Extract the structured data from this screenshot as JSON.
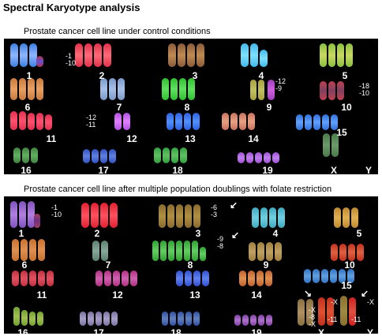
{
  "title": "Spectral Karyotype analysis",
  "panel1": {
    "caption": "Prostate cancer cell line under control conditions",
    "labels": [
      "1",
      "2",
      "3",
      "4",
      "5",
      "6",
      "7",
      "8",
      "9",
      "10",
      "11",
      "12",
      "13",
      "14",
      "15",
      "16",
      "17",
      "18",
      "19",
      "X",
      "Y"
    ],
    "annotations": [
      "-1\n-10",
      "-12\n-9",
      "-18\n-10",
      "-12\n-11"
    ]
  },
  "panel2": {
    "caption": "Prostate cancer cell line after multiple population doublings with folate restriction",
    "labels": [
      "1",
      "2",
      "3",
      "4",
      "5",
      "6",
      "7",
      "8",
      "9",
      "10",
      "11",
      "12",
      "13",
      "14",
      "15",
      "16",
      "17",
      "18",
      "19",
      "X",
      "Y"
    ],
    "annotations": [
      "-1\n-10",
      "-6\n-3",
      "-9\n-8",
      "-X\n-8\n-X",
      "-X",
      "-X",
      "-11",
      "-11"
    ]
  }
}
